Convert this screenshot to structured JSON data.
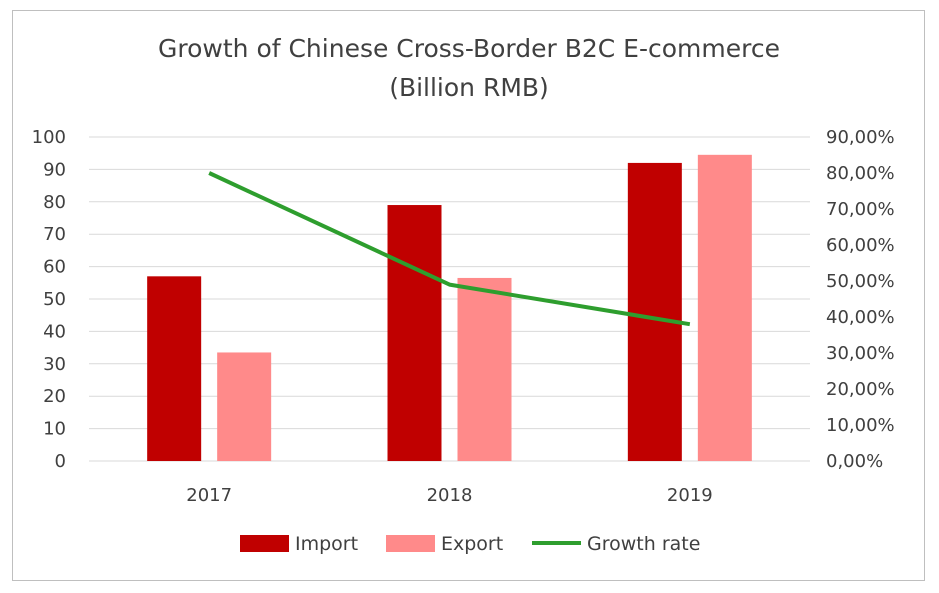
{
  "chart_data": {
    "type": "bar",
    "title": "Growth of Chinese Cross-Border B2C E-commerce",
    "subtitle": "(Billion RMB)",
    "categories": [
      "2017",
      "2018",
      "2019"
    ],
    "series": [
      {
        "name": "Import",
        "type": "bar",
        "axis": "left",
        "color": "#c00000",
        "values": [
          57,
          79,
          92
        ]
      },
      {
        "name": "Export",
        "type": "bar",
        "axis": "left",
        "color": "#ff8a8a",
        "values": [
          33.5,
          56.5,
          94.5
        ]
      },
      {
        "name": "Growth rate",
        "type": "line",
        "axis": "right",
        "color": "#2e9e2e",
        "values": [
          0.8,
          0.49,
          0.38
        ]
      }
    ],
    "y_left": {
      "min": 0,
      "max": 100,
      "step": 10,
      "tick_labels": [
        "0",
        "10",
        "20",
        "30",
        "40",
        "50",
        "60",
        "70",
        "80",
        "90",
        "100"
      ]
    },
    "y_right": {
      "min": 0,
      "max": 0.9,
      "step": 0.1,
      "tick_labels": [
        "0,00%",
        "10,00%",
        "20,00%",
        "30,00%",
        "40,00%",
        "50,00%",
        "60,00%",
        "70,00%",
        "80,00%",
        "90,00%"
      ]
    },
    "grid": true,
    "legend_position": "bottom"
  }
}
